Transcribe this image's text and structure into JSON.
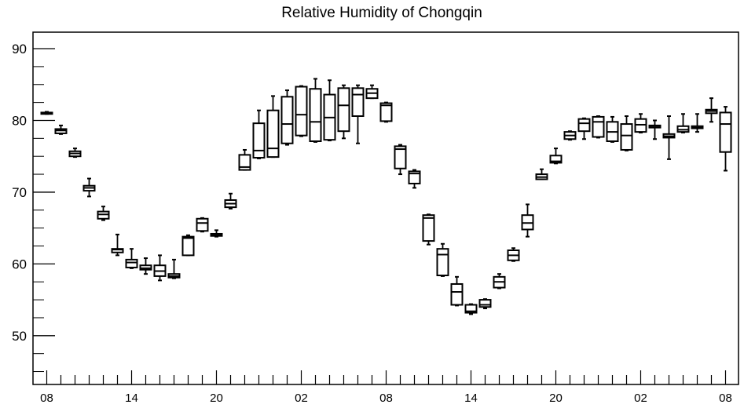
{
  "chart_data": {
    "type": "box",
    "title": "Relative Humidity of Chongqin",
    "xlabel": "",
    "ylabel": "",
    "ylim": [
      43.2,
      92.3
    ],
    "yticks": [
      50,
      60,
      70,
      80,
      90
    ],
    "xlim": [
      0,
      49
    ],
    "xticks": [
      {
        "pos": 0,
        "label": "08"
      },
      {
        "pos": 6,
        "label": "14"
      },
      {
        "pos": 12,
        "label": "20"
      },
      {
        "pos": 18,
        "label": "02"
      },
      {
        "pos": 24,
        "label": "08"
      },
      {
        "pos": 30,
        "label": "14"
      },
      {
        "pos": 36,
        "label": "20"
      },
      {
        "pos": 42,
        "label": "02"
      },
      {
        "pos": 48,
        "label": "08"
      }
    ],
    "grid": false,
    "box_color": "#000000",
    "boxes": [
      {
        "x": 0,
        "whislo": 80.9,
        "q1": 80.9,
        "med": 81.0,
        "q3": 81.1,
        "whishi": 81.2
      },
      {
        "x": 1,
        "whislo": 78.1,
        "q1": 78.2,
        "med": 78.6,
        "q3": 78.8,
        "whishi": 79.3
      },
      {
        "x": 2,
        "whislo": 74.9,
        "q1": 75.0,
        "med": 75.4,
        "q3": 75.7,
        "whishi": 76.1
      },
      {
        "x": 3,
        "whislo": 69.4,
        "q1": 70.2,
        "med": 70.6,
        "q3": 70.9,
        "whishi": 71.9
      },
      {
        "x": 4,
        "whislo": 66.1,
        "q1": 66.3,
        "med": 66.9,
        "q3": 67.3,
        "whishi": 68.0
      },
      {
        "x": 5,
        "whislo": 61.2,
        "q1": 61.6,
        "med": 62.0,
        "q3": 62.1,
        "whishi": 64.1
      },
      {
        "x": 6,
        "whislo": 59.4,
        "q1": 59.5,
        "med": 60.2,
        "q3": 60.6,
        "whishi": 62.1
      },
      {
        "x": 7,
        "whislo": 58.6,
        "q1": 59.2,
        "med": 59.4,
        "q3": 59.8,
        "whishi": 60.8
      },
      {
        "x": 8,
        "whislo": 57.7,
        "q1": 58.3,
        "med": 59.0,
        "q3": 59.8,
        "whishi": 61.2
      },
      {
        "x": 9,
        "whislo": 58.0,
        "q1": 58.1,
        "med": 58.3,
        "q3": 58.6,
        "whishi": 60.6
      },
      {
        "x": 10,
        "whislo": 61.2,
        "q1": 61.2,
        "med": 63.6,
        "q3": 63.8,
        "whishi": 64.0
      },
      {
        "x": 11,
        "whislo": 64.5,
        "q1": 64.6,
        "med": 65.7,
        "q3": 66.3,
        "whishi": 66.4
      },
      {
        "x": 12,
        "whislo": 63.8,
        "q1": 63.9,
        "med": 64.0,
        "q3": 64.2,
        "whishi": 64.7
      },
      {
        "x": 13,
        "whislo": 67.7,
        "q1": 67.9,
        "med": 68.4,
        "q3": 68.9,
        "whishi": 69.8
      },
      {
        "x": 14,
        "whislo": 73.1,
        "q1": 73.1,
        "med": 73.5,
        "q3": 75.2,
        "whishi": 75.9
      },
      {
        "x": 15,
        "whislo": 74.7,
        "q1": 74.8,
        "med": 75.8,
        "q3": 79.6,
        "whishi": 81.4
      },
      {
        "x": 16,
        "whislo": 74.9,
        "q1": 74.9,
        "med": 76.1,
        "q3": 81.4,
        "whishi": 83.4
      },
      {
        "x": 17,
        "whislo": 76.6,
        "q1": 76.8,
        "med": 79.5,
        "q3": 83.3,
        "whishi": 84.2
      },
      {
        "x": 18,
        "whislo": 77.8,
        "q1": 77.9,
        "med": 80.8,
        "q3": 84.7,
        "whishi": 84.8
      },
      {
        "x": 19,
        "whislo": 77.0,
        "q1": 77.1,
        "med": 79.8,
        "q3": 84.4,
        "whishi": 85.8
      },
      {
        "x": 20,
        "whislo": 77.2,
        "q1": 77.3,
        "med": 80.4,
        "q3": 83.6,
        "whishi": 85.6
      },
      {
        "x": 21,
        "whislo": 77.5,
        "q1": 78.5,
        "med": 82.1,
        "q3": 84.5,
        "whishi": 84.9
      },
      {
        "x": 22,
        "whislo": 76.8,
        "q1": 80.6,
        "med": 83.6,
        "q3": 84.5,
        "whishi": 84.9
      },
      {
        "x": 23,
        "whislo": 83.1,
        "q1": 83.1,
        "med": 83.8,
        "q3": 84.4,
        "whishi": 84.9
      },
      {
        "x": 24,
        "whislo": 79.8,
        "q1": 79.9,
        "med": 82.1,
        "q3": 82.4,
        "whishi": 82.5
      },
      {
        "x": 25,
        "whislo": 72.5,
        "q1": 73.3,
        "med": 76.0,
        "q3": 76.4,
        "whishi": 76.6
      },
      {
        "x": 26,
        "whislo": 70.6,
        "q1": 71.2,
        "med": 72.6,
        "q3": 72.9,
        "whishi": 73.1
      },
      {
        "x": 27,
        "whislo": 62.7,
        "q1": 63.2,
        "med": 66.4,
        "q3": 66.8,
        "whishi": 66.9
      },
      {
        "x": 28,
        "whislo": 58.3,
        "q1": 58.4,
        "med": 61.3,
        "q3": 62.1,
        "whishi": 62.8
      },
      {
        "x": 29,
        "whislo": 54.2,
        "q1": 54.3,
        "med": 56.1,
        "q3": 57.2,
        "whishi": 58.2
      },
      {
        "x": 30,
        "whislo": 53.0,
        "q1": 53.2,
        "med": 53.4,
        "q3": 54.3,
        "whishi": 54.4
      },
      {
        "x": 31,
        "whislo": 53.8,
        "q1": 54.0,
        "med": 54.3,
        "q3": 55.0,
        "whishi": 55.1
      },
      {
        "x": 32,
        "whislo": 56.6,
        "q1": 56.7,
        "med": 57.5,
        "q3": 58.2,
        "whishi": 58.6
      },
      {
        "x": 33,
        "whislo": 60.4,
        "q1": 60.5,
        "med": 61.2,
        "q3": 61.9,
        "whishi": 62.2
      },
      {
        "x": 34,
        "whislo": 63.8,
        "q1": 64.8,
        "med": 65.7,
        "q3": 66.8,
        "whishi": 68.3
      },
      {
        "x": 35,
        "whislo": 71.8,
        "q1": 71.8,
        "med": 72.1,
        "q3": 72.5,
        "whishi": 73.2
      },
      {
        "x": 36,
        "whislo": 74.0,
        "q1": 74.1,
        "med": 74.3,
        "q3": 75.1,
        "whishi": 76.1
      },
      {
        "x": 37,
        "whislo": 77.3,
        "q1": 77.4,
        "med": 77.9,
        "q3": 78.4,
        "whishi": 78.5
      },
      {
        "x": 38,
        "whislo": 77.4,
        "q1": 78.5,
        "med": 79.6,
        "q3": 80.2,
        "whishi": 80.3
      },
      {
        "x": 39,
        "whislo": 77.6,
        "q1": 77.7,
        "med": 79.8,
        "q3": 80.5,
        "whishi": 80.6
      },
      {
        "x": 40,
        "whislo": 77.0,
        "q1": 77.1,
        "med": 78.4,
        "q3": 79.8,
        "whishi": 80.5
      },
      {
        "x": 41,
        "whislo": 75.8,
        "q1": 75.9,
        "med": 77.9,
        "q3": 79.5,
        "whishi": 80.6
      },
      {
        "x": 42,
        "whislo": 78.3,
        "q1": 78.4,
        "med": 79.4,
        "q3": 80.2,
        "whishi": 80.9
      },
      {
        "x": 43,
        "whislo": 77.4,
        "q1": 79.0,
        "med": 79.2,
        "q3": 79.3,
        "whishi": 80.0
      },
      {
        "x": 44,
        "whislo": 74.6,
        "q1": 77.6,
        "med": 77.8,
        "q3": 78.1,
        "whishi": 80.6
      },
      {
        "x": 45,
        "whislo": 78.3,
        "q1": 78.4,
        "med": 78.7,
        "q3": 79.2,
        "whishi": 80.9
      },
      {
        "x": 46,
        "whislo": 78.4,
        "q1": 78.9,
        "med": 79.0,
        "q3": 79.2,
        "whishi": 80.9
      },
      {
        "x": 47,
        "whislo": 79.8,
        "q1": 81.0,
        "med": 81.3,
        "q3": 81.5,
        "whishi": 83.1
      },
      {
        "x": 48,
        "whislo": 73.0,
        "q1": 75.6,
        "med": 79.5,
        "q3": 81.1,
        "whishi": 81.9
      }
    ]
  }
}
